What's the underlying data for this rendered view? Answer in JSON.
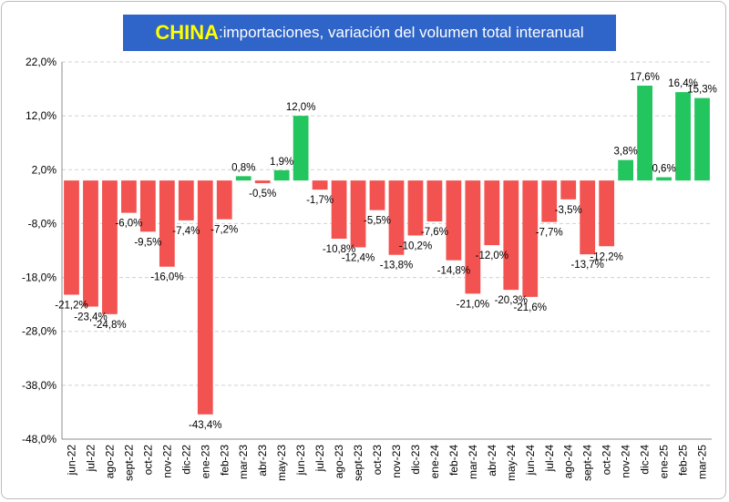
{
  "title": {
    "country": "CHINA",
    "separator": ":",
    "text": " importaciones, variación del volumen total interanual"
  },
  "colors": {
    "positive": "#22c55e",
    "negative": "#f25250",
    "title_bg": "#2f64c8",
    "title_country": "#ffff00",
    "title_text": "#ffffff"
  },
  "chart_data": {
    "type": "bar",
    "title": "CHINA: importaciones, variación del volumen total interanual",
    "xlabel": "",
    "ylabel": "",
    "ylim": [
      -48,
      22
    ],
    "yticks": [
      22,
      12,
      2,
      -8,
      -18,
      -28,
      -38,
      -48
    ],
    "ytick_labels": [
      "22,0%",
      "12,0%",
      "2,0%",
      "-8,0%",
      "-18,0%",
      "-28,0%",
      "-38,0%",
      "-48,0%"
    ],
    "grid": true,
    "categories": [
      "jun-22",
      "jul-22",
      "ago-22",
      "sept-22",
      "oct-22",
      "nov-22",
      "dic-22",
      "ene-23",
      "feb-23",
      "mar-23",
      "abr-23",
      "may-23",
      "jun-23",
      "jul-23",
      "ago-23",
      "sept-23",
      "oct-23",
      "nov-23",
      "dic-23",
      "ene-24",
      "feb-24",
      "mar-24",
      "abr-24",
      "may-24",
      "jun-24",
      "jul-24",
      "ago-24",
      "sept-24",
      "oct-24",
      "nov-24",
      "dic-24",
      "ene-25",
      "feb-25",
      "mar-25"
    ],
    "values": [
      -21.2,
      -23.4,
      -24.8,
      -6.0,
      -9.5,
      -16.0,
      -7.4,
      -43.4,
      -7.2,
      0.8,
      -0.5,
      1.9,
      12.0,
      -1.7,
      -10.8,
      -12.4,
      -5.5,
      -13.8,
      -10.2,
      -7.6,
      -14.8,
      -21.0,
      -12.0,
      -20.3,
      -21.6,
      -7.7,
      -3.5,
      -13.7,
      -12.2,
      3.8,
      17.6,
      0.6,
      16.4,
      15.3
    ],
    "labels": [
      "-21,2%",
      "-23,4%",
      "-24,8%",
      "-6,0%",
      "-9,5%",
      "-16,0%",
      "-7,4%",
      "-43,4%",
      "-7,2%",
      "0,8%",
      "-0,5%",
      "1,9%",
      "12,0%",
      "-1,7%",
      "-10,8%",
      "-12,4%",
      "-5,5%",
      "-13,8%",
      "-10,2%",
      "-7,6%",
      "-14,8%",
      "-21,0%",
      "-12,0%",
      "-20,3%",
      "-21,6%",
      "-7,7%",
      "-3,5%",
      "-13,7%",
      "-12,2%",
      "3,8%",
      "17,6%",
      "0,6%",
      "16,4%",
      "15,3%"
    ]
  }
}
